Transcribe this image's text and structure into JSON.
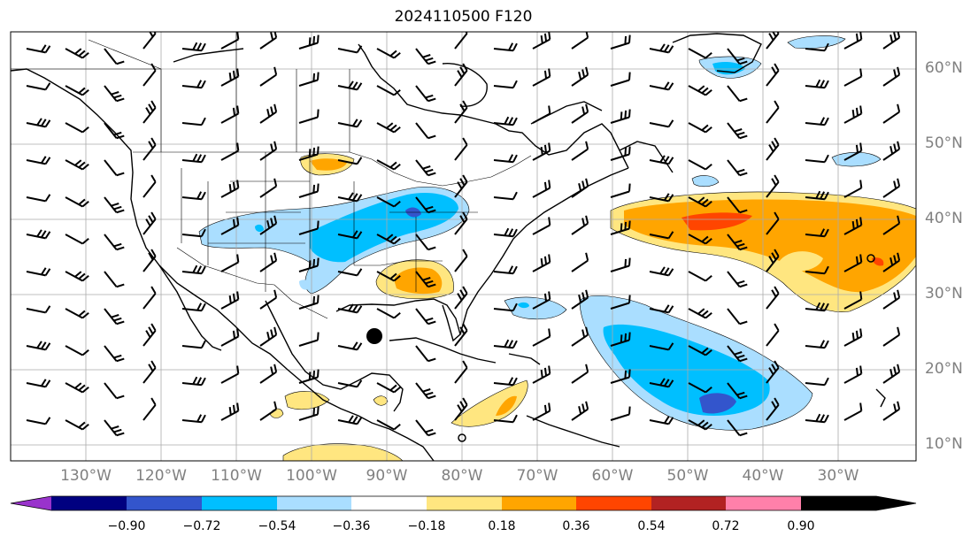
{
  "title": "2024110500 F120",
  "lat_labels": [
    "60°N",
    "50°N",
    "40°N",
    "30°N",
    "20°N",
    "10°N"
  ],
  "lon_labels": [
    "130°W",
    "120°W",
    "110°W",
    "100°W",
    "90°W",
    "80°W",
    "70°W",
    "60°W",
    "50°W",
    "40°W",
    "30°W"
  ],
  "colorbar": {
    "ticks": [
      "−0.90",
      "−0.72",
      "−0.54",
      "−0.36",
      "−0.18",
      "0.18",
      "0.36",
      "0.54",
      "0.72",
      "0.90"
    ],
    "colors": [
      "#9933cc",
      "#000080",
      "#3355cc",
      "#00bfff",
      "#aadeff",
      "#ffffff",
      "#ffe680",
      "#ffa500",
      "#ff4500",
      "#b22222",
      "#ff80aa"
    ],
    "extend": "both"
  },
  "storm_marker": {
    "lon": -92,
    "lat": 24.5
  }
}
